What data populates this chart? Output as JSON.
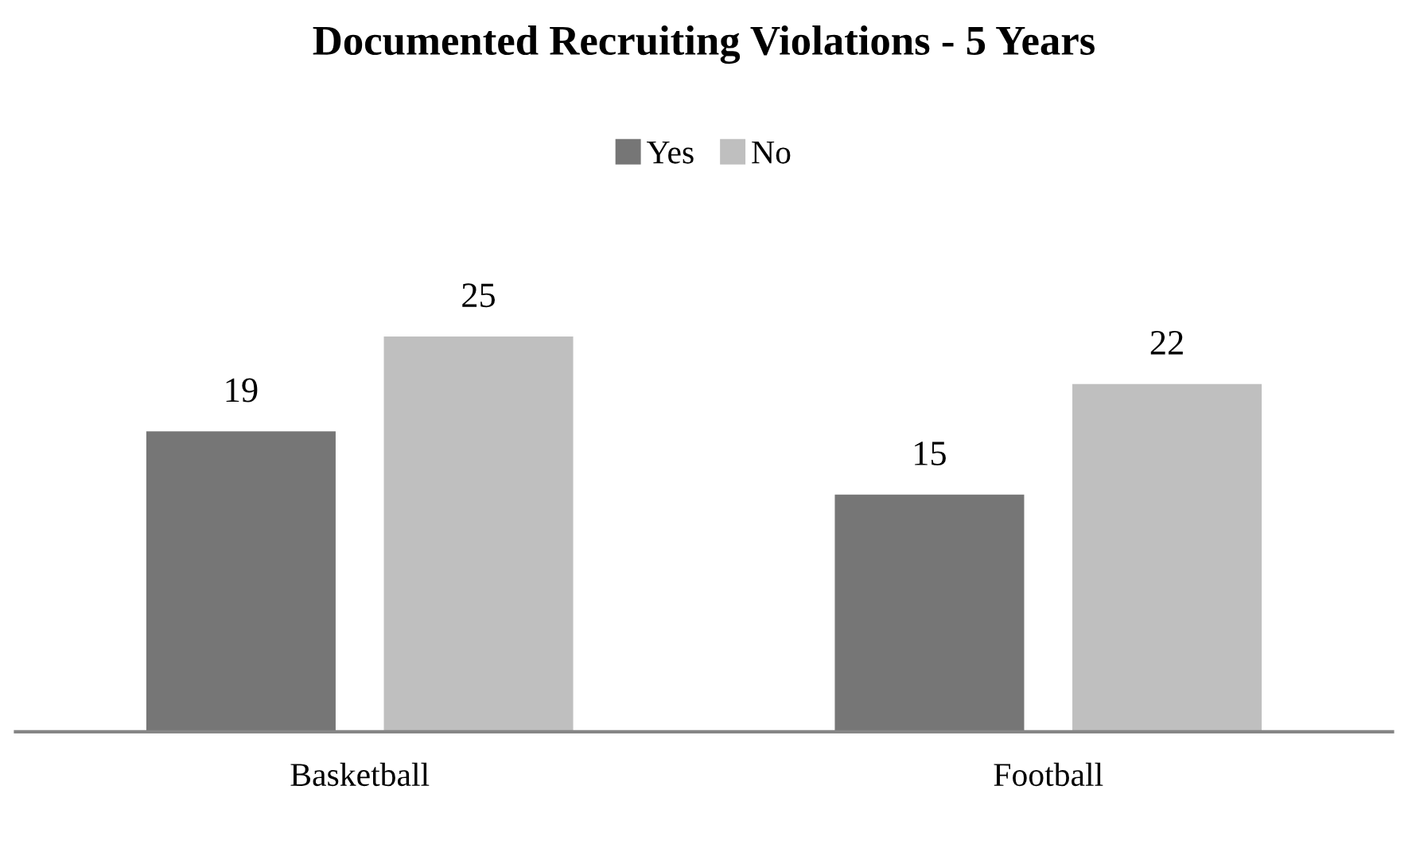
{
  "chart_data": {
    "type": "bar",
    "title": "Documented Recruiting Violations - 5 Years",
    "categories": [
      "Basketball",
      "Football"
    ],
    "series": [
      {
        "name": "Yes",
        "color": "#767676",
        "values": [
          19,
          15
        ]
      },
      {
        "name": "No",
        "color": "#bfbfbf",
        "values": [
          25,
          22
        ]
      }
    ],
    "data_labels": true,
    "legend": "top",
    "grid": false,
    "tick_labels": "x"
  }
}
